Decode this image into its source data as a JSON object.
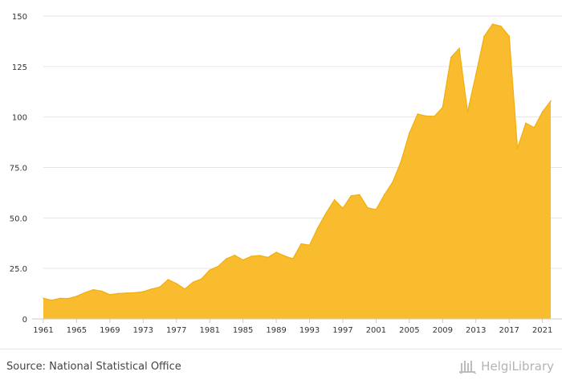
{
  "chart_data": {
    "type": "area",
    "x": [
      1961,
      1962,
      1963,
      1964,
      1965,
      1966,
      1967,
      1968,
      1969,
      1970,
      1971,
      1972,
      1973,
      1974,
      1975,
      1976,
      1977,
      1978,
      1979,
      1980,
      1981,
      1982,
      1983,
      1984,
      1985,
      1986,
      1987,
      1988,
      1989,
      1990,
      1991,
      1992,
      1993,
      1994,
      1995,
      1996,
      1997,
      1998,
      1999,
      2000,
      2001,
      2002,
      2003,
      2004,
      2005,
      2006,
      2007,
      2008,
      2009,
      2010,
      2011,
      2012,
      2013,
      2014,
      2015,
      2016,
      2017,
      2018,
      2019,
      2020,
      2021,
      2022
    ],
    "values": [
      10.2,
      9.2,
      10.2,
      10.1,
      11.2,
      13.0,
      14.5,
      13.8,
      12.0,
      12.6,
      12.8,
      13.0,
      13.5,
      14.8,
      15.8,
      19.5,
      17.5,
      14.8,
      18.2,
      19.8,
      24.2,
      26.0,
      29.8,
      31.5,
      29.2,
      31.0,
      31.4,
      30.5,
      33.0,
      31.2,
      29.8,
      37.2,
      36.5,
      45.2,
      52.5,
      59.0,
      54.8,
      61.0,
      61.5,
      55.0,
      54.2,
      61.5,
      67.8,
      78.0,
      92.0,
      101.5,
      100.5,
      100.3,
      104.8,
      129.5,
      134.0,
      102.5,
      121.0,
      140.0,
      146.0,
      145.0,
      140.0,
      84.5,
      97.0,
      94.8,
      102.5,
      108.0
    ],
    "x_tick_labels": [
      "1961",
      "1965",
      "1969",
      "1973",
      "1977",
      "1981",
      "1985",
      "1989",
      "1993",
      "1997",
      "2001",
      "2005",
      "2009",
      "2013",
      "2017",
      "2021"
    ],
    "y_tick_labels": [
      "0",
      "25.0",
      "50.0",
      "75.0",
      "100",
      "125",
      "150"
    ],
    "xlim": [
      1961,
      2022
    ],
    "ylim": [
      0,
      150
    ],
    "grid": true,
    "fill_color": "#f9bc2f",
    "line_color": "#f2ae0c"
  },
  "footer": {
    "source": "Source: National Statistical Office",
    "brand": "HelgiLibrary"
  },
  "colors": {
    "gridline": "#e6e6e6",
    "axis": "#cccccc",
    "text": "#333333"
  }
}
